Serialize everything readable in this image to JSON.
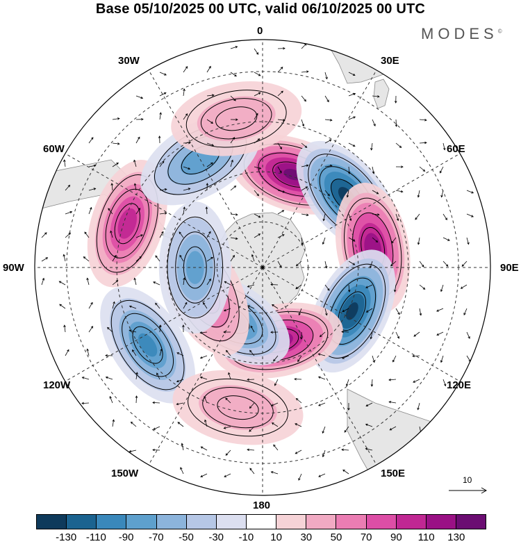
{
  "title": "Base 05/10/2025 00 UTC, valid 06/10/2025 00 UTC",
  "brand": "MODES",
  "brand_mark": "©",
  "longitude_labels": {
    "n0": "0",
    "e30": "30E",
    "e60": "60E",
    "e90": "90E",
    "e120": "120E",
    "e150": "150E",
    "s180": "180",
    "w150": "150W",
    "w120": "120W",
    "w90": "90W",
    "w60": "60W",
    "w30": "30W"
  },
  "reference_vector": "10",
  "colorbar": {
    "colors": [
      "#0e3a5b",
      "#1b6390",
      "#3a88bb",
      "#5ea0cd",
      "#8cb4dc",
      "#b6c7e6",
      "#dcdff0",
      "#ffffff",
      "#f6d3d7",
      "#f1aac3",
      "#eb7db3",
      "#dd4ea6",
      "#c02793",
      "#9a1185",
      "#6b0d72"
    ],
    "ticks": [
      "-130",
      "-110",
      "-90",
      "-70",
      "-50",
      "-30",
      "-10",
      "10",
      "30",
      "50",
      "70",
      "90",
      "110",
      "130"
    ]
  },
  "map_data": {
    "projection": "south-polar-stereographic",
    "field_min": -150,
    "field_max": 150,
    "anomalies": [
      {
        "value": 130,
        "lon": 18,
        "rank": 0.55
      },
      {
        "value": -135,
        "lon": 50,
        "rank": 0.62
      },
      {
        "value": 120,
        "lon": 80,
        "rank": 0.63
      },
      {
        "value": -130,
        "lon": 116,
        "rank": 0.56
      },
      {
        "value": 120,
        "lon": 168,
        "rank": 0.42
      },
      {
        "value": -100,
        "lon": -148,
        "rank": 0.34
      },
      {
        "value": 80,
        "lon": -115,
        "rank": 0.35
      },
      {
        "value": -70,
        "lon": -90,
        "rank": 0.38
      },
      {
        "value": -90,
        "lon": -124,
        "rank": 0.78
      },
      {
        "value": 95,
        "lon": -72,
        "rank": 0.8
      },
      {
        "value": -80,
        "lon": -30,
        "rank": 0.7
      },
      {
        "value": 40,
        "lon": -10,
        "rank": 0.85
      },
      {
        "value": 40,
        "lon": -170,
        "rank": 0.8
      }
    ]
  }
}
